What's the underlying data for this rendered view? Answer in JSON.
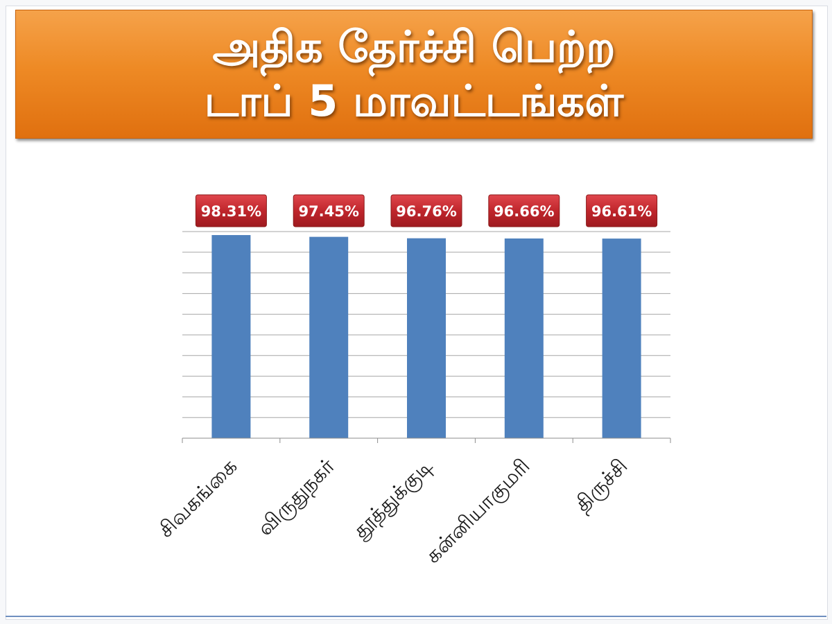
{
  "title": {
    "line1": "அதிக தேர்ச்சி பெற்ற",
    "line2": "டாப் 5 மாவட்டங்கள்"
  },
  "chart_data": {
    "type": "bar",
    "categories": [
      "சிவகங்கை",
      "விருதுநகர்",
      "தூத்துக்குடி",
      "கன்னியாகுமரி",
      "திருச்சி"
    ],
    "values": [
      98.31,
      97.45,
      96.76,
      96.66,
      96.61
    ],
    "value_labels": [
      "98.31%",
      "97.45%",
      "96.76%",
      "96.66%",
      "96.61%"
    ],
    "title": "",
    "xlabel": "",
    "ylabel": "",
    "ylim": [
      0,
      100
    ],
    "grid": true,
    "legend": "none",
    "colors": {
      "bar": "#4f81bd",
      "label_background": "#c0262c",
      "label_text": "#ffffff"
    }
  }
}
